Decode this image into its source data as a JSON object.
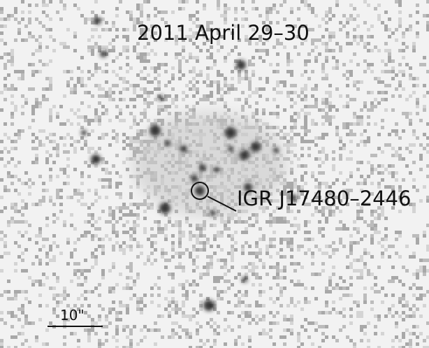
{
  "title": "2011 April 29–30",
  "source_label": "IGR J17480–2446",
  "scale_bar_label": "10\""
}
